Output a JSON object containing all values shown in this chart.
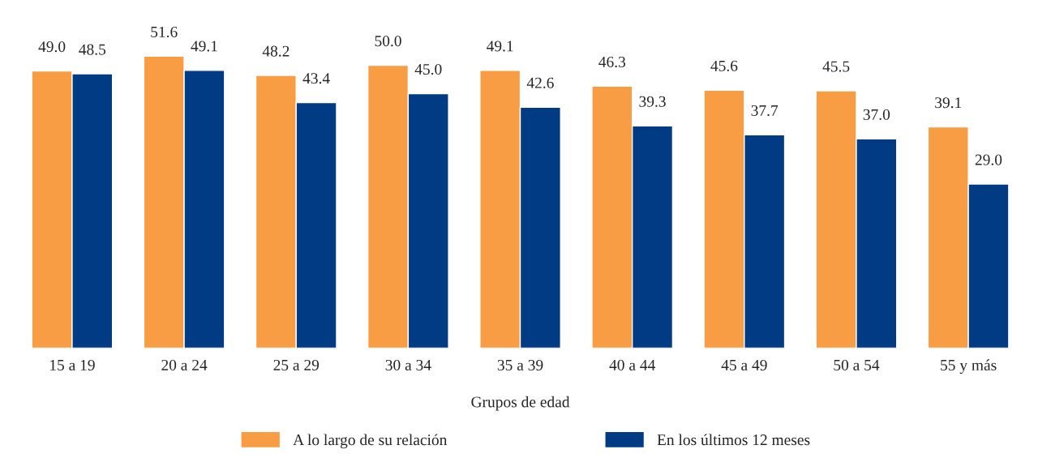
{
  "chart_data": {
    "type": "bar",
    "xlabel": "Grupos de edad",
    "categories": [
      "15 a 19",
      "20 a 24",
      "25 a 29",
      "30 a 34",
      "35 a 39",
      "40 a 44",
      "45 a 49",
      "50 a 54",
      "55 y más"
    ],
    "series": [
      {
        "name": "A lo largo de su relación",
        "color": "#f99d45",
        "values": [
          49.0,
          51.6,
          48.2,
          50.0,
          49.1,
          46.3,
          45.6,
          45.5,
          39.1
        ],
        "value_labels": [
          "49.0",
          "51.6",
          "48.2",
          "50.0",
          "49.1",
          "46.3",
          "45.6",
          "45.5",
          "39.1"
        ]
      },
      {
        "name": "En los últimos 12 meses",
        "color": "#003b84",
        "values": [
          48.5,
          49.1,
          43.4,
          45.0,
          42.6,
          39.3,
          37.7,
          37.0,
          29.0
        ],
        "value_labels": [
          "48.5",
          "49.1",
          "43.4",
          "45.0",
          "42.6",
          "39.3",
          "37.7",
          "37.0",
          "29.0"
        ]
      }
    ],
    "legend": "bottom",
    "grid": false
  }
}
